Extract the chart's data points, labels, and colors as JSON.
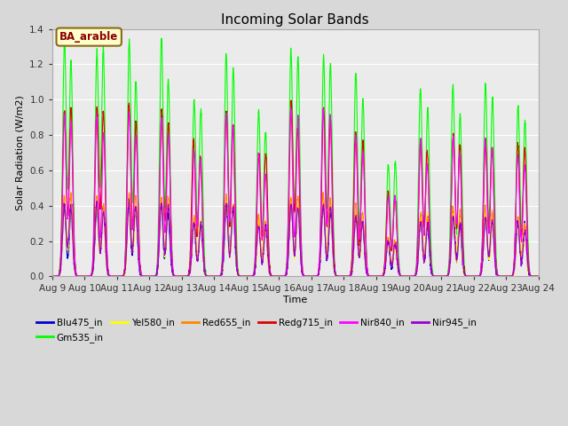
{
  "title": "Incoming Solar Bands",
  "xlabel": "Time",
  "ylabel": "Solar Radiation (W/m2)",
  "annotation_text": "BA_arable",
  "annotation_color": "#8B0000",
  "annotation_bg": "#FFFFCC",
  "annotation_border": "#8B6914",
  "ylim": [
    0.0,
    1.4
  ],
  "date_start": 9,
  "date_end": 24,
  "series": [
    {
      "label": "Blu475_in",
      "color": "#0000CC",
      "peak": 0.4
    },
    {
      "label": "Gm535_in",
      "color": "#00FF00",
      "peak": 1.3
    },
    {
      "label": "Yel580_in",
      "color": "#FFFF00",
      "peak": 0.43
    },
    {
      "label": "Red655_in",
      "color": "#FF8800",
      "peak": 0.46
    },
    {
      "label": "Redg715_in",
      "color": "#DD0000",
      "peak": 0.98
    },
    {
      "label": "Nir840_in",
      "color": "#FF00FF",
      "peak": 0.92
    },
    {
      "label": "Nir945_in",
      "color": "#9900CC",
      "peak": 0.4
    }
  ],
  "bg_color": "#D8D8D8",
  "plot_bg": "#EBEBEB",
  "grid_color": "#FFFFFF",
  "figsize": [
    6.4,
    4.8
  ],
  "dpi": 100,
  "day_peaks": [
    1.0,
    1.0,
    1.0,
    1.0,
    0.75,
    1.0,
    0.72,
    1.0,
    1.0,
    0.85,
    0.5,
    0.8,
    0.82,
    0.82,
    0.75
  ],
  "legend_order": [
    "Blu475_in",
    "Gm535_in",
    "Yel580_in",
    "Red655_in",
    "Redg715_in",
    "Nir840_in",
    "Nir945_in"
  ]
}
